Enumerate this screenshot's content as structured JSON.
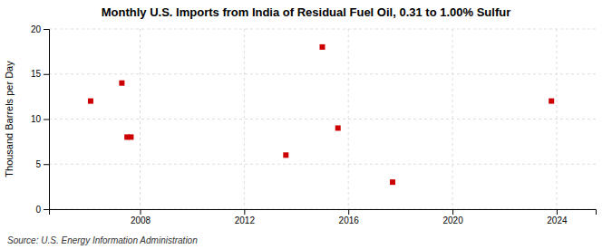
{
  "chart_data": {
    "type": "scatter",
    "title": "Monthly U.S. Imports from India of Residual Fuel Oil, 0.31 to 1.00% Sulfur",
    "ylabel": "Thousand Barrels per Day",
    "source": "Source: U.S. Energy Information Administration",
    "x": [
      2006.1,
      2007.3,
      2007.5,
      2007.65,
      2013.6,
      2015.0,
      2015.6,
      2017.7,
      2023.8
    ],
    "values": [
      12,
      14,
      8,
      8,
      6,
      18,
      9,
      3,
      12
    ],
    "color": "#cc0000",
    "marker": "square",
    "xlim": [
      2004.5,
      2025.5
    ],
    "ylim": [
      0,
      20
    ],
    "xticks": [
      2008,
      2012,
      2016,
      2020,
      2024
    ],
    "yticks": [
      0,
      5,
      10,
      15,
      20
    ],
    "grid": true
  }
}
